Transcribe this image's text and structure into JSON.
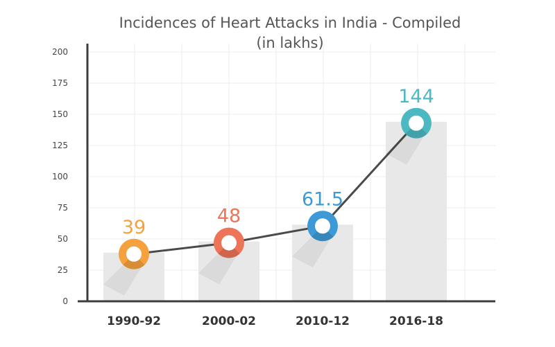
{
  "chart_data": {
    "type": "bar",
    "title": "Incidences of Heart Attacks in India - Compiled",
    "subtitle": "(in lakhs)",
    "categories": [
      "1990-92",
      "2000-02",
      "2010-12",
      "2016-18"
    ],
    "values": [
      39,
      48,
      61.5,
      144
    ],
    "value_labels": [
      "39",
      "48",
      "61.5",
      "144"
    ],
    "ylim": [
      0,
      200
    ],
    "yticks": [
      "0",
      "25",
      "50",
      "75",
      "100",
      "125",
      "150",
      "175",
      "200"
    ],
    "grid": true,
    "line_overlay": true,
    "colors": {
      "bar": "#e8e8e8",
      "line": "#4a4a4a",
      "axis": "#3d3d3d",
      "grid": "#ececec",
      "markers": [
        "#f5a13e",
        "#ee7457",
        "#3d9ad6",
        "#4cb8c1"
      ]
    }
  }
}
